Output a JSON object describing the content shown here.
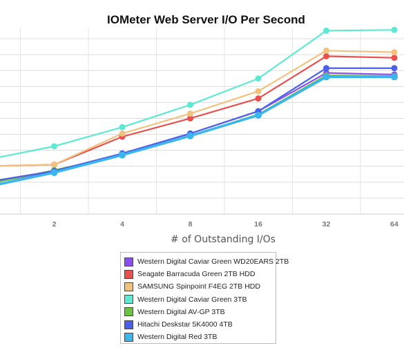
{
  "chart_data": {
    "type": "line",
    "title": "IOMeter Web Server I/O Per Second",
    "xlabel": "# of Outstanding I/Os",
    "ylabel": "",
    "x": [
      1,
      2,
      4,
      8,
      16,
      32,
      64
    ],
    "x_tick_labels": [
      "2",
      "4",
      "8",
      "16",
      "32",
      "64"
    ],
    "ylim": [
      0,
      220
    ],
    "grid": true,
    "legend_position": "bottom",
    "series": [
      {
        "name": "Western Digital Caviar Green WD20EARS 2TB",
        "color": "#8a4ff0",
        "values": [
          38,
          53,
          76,
          101,
          129,
          177,
          175
        ]
      },
      {
        "name": "Seagate Barracuda Green 2TB HDD",
        "color": "#e8504e",
        "values": [
          60,
          62,
          97,
          120,
          145,
          198,
          196
        ]
      },
      {
        "name": "SAMSUNG Spinpoint F4EG 2TB HDD",
        "color": "#f0c27e",
        "values": [
          60,
          62,
          101,
          126,
          154,
          205,
          203
        ]
      },
      {
        "name": "Western Digital Caviar Green 3TB",
        "color": "#5ee9d3",
        "values": [
          68,
          85,
          109,
          137,
          170,
          230,
          231
        ]
      },
      {
        "name": "Western Digital AV-GP 3TB",
        "color": "#6cc243",
        "values": [
          37,
          55,
          74,
          98,
          125,
          174,
          173
        ]
      },
      {
        "name": "Hitachi Deskstar 5K4000 4TB",
        "color": "#4a5fea",
        "values": [
          40,
          54,
          76,
          101,
          129,
          183,
          183
        ]
      },
      {
        "name": "Western Digital Red 3TB",
        "color": "#3ab6ef",
        "values": [
          34,
          52,
          74,
          98,
          124,
          172,
          172
        ]
      }
    ]
  }
}
